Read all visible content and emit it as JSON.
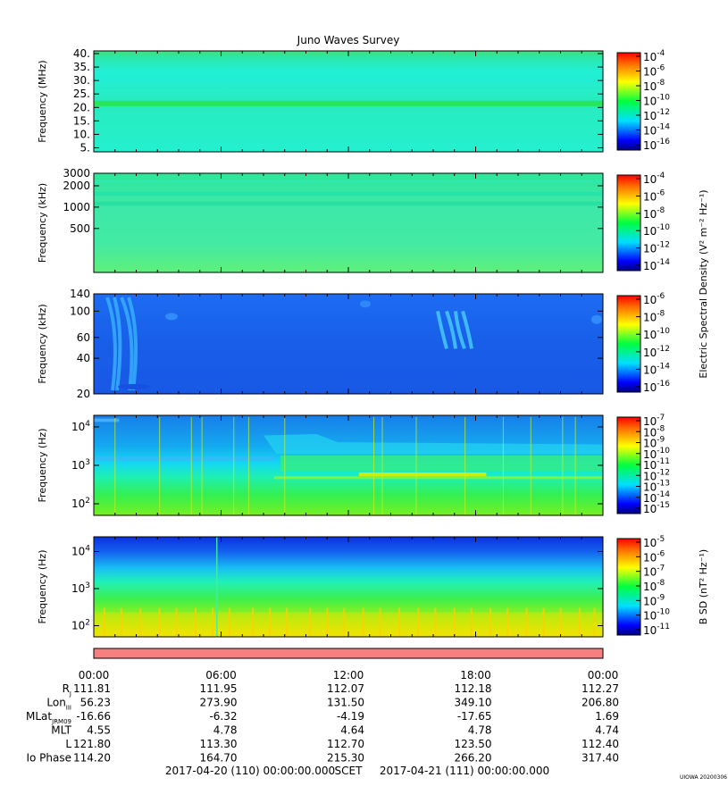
{
  "chart_data": {
    "type": "heatmap",
    "title": "Juno Waves Survey",
    "x_range": [
      "2017-04-20 00:00",
      "2017-04-21 00:00"
    ],
    "panels": [
      {
        "name": "panel-1",
        "ylabel": "Frequency (MHz)",
        "yscale": "linear",
        "ylim": [
          3.5,
          41
        ],
        "yticks": [
          {
            "v": 40,
            "label": "40."
          },
          {
            "v": 35,
            "label": "35."
          },
          {
            "v": 30,
            "label": "30."
          },
          {
            "v": 25,
            "label": "25."
          },
          {
            "v": 20,
            "label": "20."
          },
          {
            "v": 15,
            "label": "15."
          },
          {
            "v": 10,
            "label": "10."
          },
          {
            "v": 5,
            "label": "5."
          }
        ],
        "colorbar": {
          "ticks": [
            {
              "base": "10",
              "exp": "-4"
            },
            {
              "base": "10",
              "exp": "-6"
            },
            {
              "base": "10",
              "exp": "-8"
            },
            {
              "base": "10",
              "exp": "-10"
            },
            {
              "base": "10",
              "exp": "-12"
            },
            {
              "base": "10",
              "exp": "-14"
            },
            {
              "base": "10",
              "exp": "-16"
            }
          ]
        }
      },
      {
        "name": "panel-2",
        "ylabel": "Frequency (kHz)",
        "yscale": "log",
        "ylim": [
          120,
          3000
        ],
        "yticks": [
          {
            "v": 3000,
            "label": "3000"
          },
          {
            "v": 2000,
            "label": "2000"
          },
          {
            "v": 1000,
            "label": "1000"
          },
          {
            "v": 500,
            "label": "500"
          }
        ],
        "colorbar": {
          "ticks": [
            {
              "base": "10",
              "exp": "-4"
            },
            {
              "base": "10",
              "exp": "-6"
            },
            {
              "base": "10",
              "exp": "-8"
            },
            {
              "base": "10",
              "exp": "-10"
            },
            {
              "base": "10",
              "exp": "-12"
            },
            {
              "base": "10",
              "exp": "-14"
            }
          ]
        }
      },
      {
        "name": "panel-3",
        "ylabel": "Frequency (kHz)",
        "yscale": "log",
        "ylim": [
          20,
          140
        ],
        "yticks": [
          {
            "v": 140,
            "label": "140"
          },
          {
            "v": 100,
            "label": "100"
          },
          {
            "v": 60,
            "label": "60"
          },
          {
            "v": 40,
            "label": "40"
          },
          {
            "v": 20,
            "label": "20"
          }
        ],
        "colorbar": {
          "ticks": [
            {
              "base": "10",
              "exp": "-6"
            },
            {
              "base": "10",
              "exp": "-8"
            },
            {
              "base": "10",
              "exp": "-10"
            },
            {
              "base": "10",
              "exp": "-12"
            },
            {
              "base": "10",
              "exp": "-14"
            },
            {
              "base": "10",
              "exp": "-16"
            }
          ]
        }
      },
      {
        "name": "panel-4",
        "ylabel": "Frequency (Hz)",
        "yscale": "log",
        "ylim": [
          50,
          20000
        ],
        "yticks": [
          {
            "v": 10000,
            "base": "10",
            "exp": "4"
          },
          {
            "v": 1000,
            "base": "10",
            "exp": "3"
          },
          {
            "v": 100,
            "base": "10",
            "exp": "2"
          }
        ],
        "colorbar": {
          "ticks": [
            {
              "base": "10",
              "exp": "-7"
            },
            {
              "base": "10",
              "exp": "-8"
            },
            {
              "base": "10",
              "exp": "-9"
            },
            {
              "base": "10",
              "exp": "-10"
            },
            {
              "base": "10",
              "exp": "-11"
            },
            {
              "base": "10",
              "exp": "-12"
            },
            {
              "base": "10",
              "exp": "-13"
            },
            {
              "base": "10",
              "exp": "-14"
            },
            {
              "base": "10",
              "exp": "-15"
            }
          ]
        }
      },
      {
        "name": "panel-5",
        "ylabel": "Frequency (Hz)",
        "yscale": "log",
        "ylim": [
          50,
          25000
        ],
        "yticks": [
          {
            "v": 10000,
            "base": "10",
            "exp": "4"
          },
          {
            "v": 1000,
            "base": "10",
            "exp": "3"
          },
          {
            "v": 100,
            "base": "10",
            "exp": "2"
          }
        ],
        "colorbar": {
          "ticks": [
            {
              "base": "10",
              "exp": "-5"
            },
            {
              "base": "10",
              "exp": "-6"
            },
            {
              "base": "10",
              "exp": "-7"
            },
            {
              "base": "10",
              "exp": "-8"
            },
            {
              "base": "10",
              "exp": "-9"
            },
            {
              "base": "10",
              "exp": "-10"
            },
            {
              "base": "10",
              "exp": "-11"
            }
          ]
        }
      }
    ],
    "colorbar_label_electric": "Electric Spectral Density (V² m⁻² Hz⁻¹)",
    "colorbar_label_magnetic": "B SD (nT² Hz⁻¹)",
    "x_tick_labels": [
      "00:00",
      "06:00",
      "12:00",
      "18:00",
      "00:00"
    ],
    "ephemeris": [
      {
        "label": "R",
        "sub": "J",
        "values": [
          "111.81",
          "111.95",
          "112.07",
          "112.18",
          "112.27"
        ]
      },
      {
        "label": "Lon",
        "sub": "III",
        "values": [
          "56.23",
          "273.90",
          "131.50",
          "349.10",
          "206.80"
        ]
      },
      {
        "label": "MLat",
        "sub": "JRM09",
        "values": [
          "-16.66",
          "-6.32",
          "-4.19",
          "-17.65",
          "1.69"
        ]
      },
      {
        "label": "MLT",
        "sub": "",
        "values": [
          "4.55",
          "4.78",
          "4.64",
          "4.78",
          "4.74"
        ]
      },
      {
        "label": "L",
        "sub": "",
        "values": [
          "121.80",
          "113.30",
          "112.70",
          "123.50",
          "112.40"
        ]
      },
      {
        "label": "Io Phase",
        "sub": "",
        "values": [
          "114.20",
          "164.70",
          "215.30",
          "266.20",
          "317.40"
        ]
      }
    ],
    "time_axis": {
      "start": "2017-04-20 (110) 00:00:00.000",
      "label": "SCET",
      "end": "2017-04-21 (111) 00:00:00.000"
    },
    "credit": "UIOWA 20200306"
  },
  "colors": {
    "availability_bar": "#f87f7f",
    "axis": "#000000"
  }
}
